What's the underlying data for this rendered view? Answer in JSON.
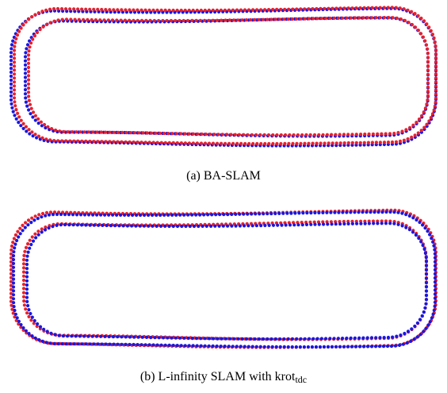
{
  "colors": {
    "series_a": "#e8202a",
    "series_b": "#1818e0"
  },
  "figure": {
    "panels": [
      {
        "id": "a",
        "caption_label": "(a)",
        "caption_text": "BA-SLAM"
      },
      {
        "id": "b",
        "caption_label": "(b)",
        "caption_text_main": "L-infinity SLAM with krot",
        "caption_text_sub": "tdc"
      }
    ]
  },
  "chart_data": [
    {
      "type": "scatter",
      "title": "",
      "xlabel": "",
      "ylabel": "",
      "grid": false,
      "legend": "none",
      "series": [
        {
          "color": "#e8202a",
          "marker": "dot"
        },
        {
          "color": "#1818e0",
          "marker": "dot"
        }
      ]
    },
    {
      "type": "scatter",
      "title": "",
      "xlabel": "",
      "ylabel": "",
      "grid": false,
      "legend": "none",
      "series": [
        {
          "color": "#e8202a",
          "marker": "dot"
        },
        {
          "color": "#1818e0",
          "marker": "dot"
        }
      ]
    }
  ]
}
